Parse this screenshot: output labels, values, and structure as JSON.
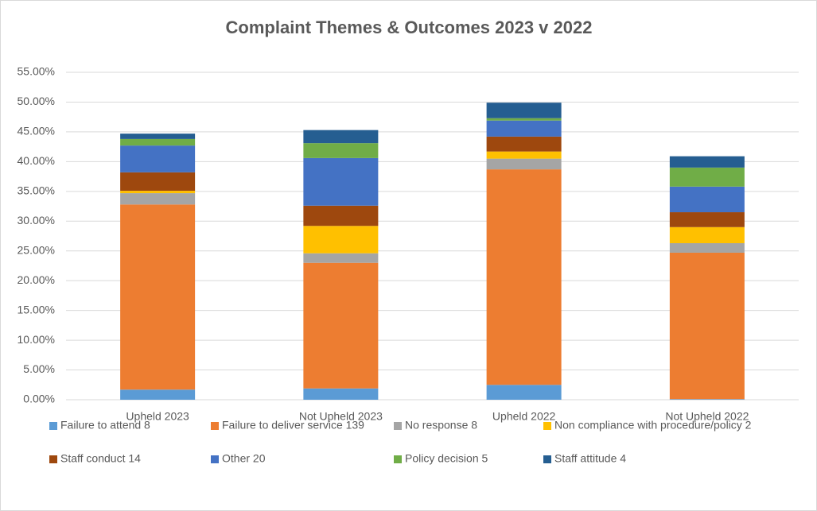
{
  "chart_data": {
    "type": "stacked_bar",
    "title": "Complaint Themes & Outcomes 2023 v 2022",
    "categories": [
      "Upheld 2023",
      "Not Upheld 2023",
      "Upheld 2022",
      "Not Upheld 2022"
    ],
    "series": [
      {
        "name": "Failure to attend 8",
        "color": "#5b9bd5",
        "values": [
          1.7,
          1.9,
          2.5,
          0.1
        ]
      },
      {
        "name": "Failure to deliver service 139",
        "color": "#ed7d31",
        "values": [
          31.1,
          21.1,
          36.2,
          24.6
        ]
      },
      {
        "name": "No response 8",
        "color": "#a5a5a5",
        "values": [
          1.9,
          1.6,
          1.8,
          1.6
        ]
      },
      {
        "name": "Non compliance with procedure/policy 2",
        "color": "#ffc000",
        "values": [
          0.4,
          4.6,
          1.2,
          2.7
        ]
      },
      {
        "name": "Staff conduct 14",
        "color": "#9e480e",
        "values": [
          3.1,
          3.4,
          2.5,
          2.5
        ]
      },
      {
        "name": "Other 20",
        "color": "#4472c4",
        "values": [
          4.5,
          8.0,
          2.7,
          4.3
        ]
      },
      {
        "name": "Policy decision 5",
        "color": "#70ad47",
        "values": [
          1.1,
          2.5,
          0.4,
          3.2
        ]
      },
      {
        "name": "Staff attitude 4",
        "color": "#255e91",
        "values": [
          0.9,
          2.2,
          2.6,
          1.9
        ]
      }
    ],
    "ylim": [
      0,
      55
    ],
    "yticks": [
      {
        "value": 0,
        "label": "0.00%"
      },
      {
        "value": 5,
        "label": "5.00%"
      },
      {
        "value": 10,
        "label": "10.00%"
      },
      {
        "value": 15,
        "label": "15.00%"
      },
      {
        "value": 20,
        "label": "20.00%"
      },
      {
        "value": 25,
        "label": "25.00%"
      },
      {
        "value": 30,
        "label": "30.00%"
      },
      {
        "value": 35,
        "label": "35.00%"
      },
      {
        "value": 40,
        "label": "40.00%"
      },
      {
        "value": 45,
        "label": "45.00%"
      },
      {
        "value": 50,
        "label": "50.00%"
      },
      {
        "value": 55,
        "label": "55.00%"
      }
    ],
    "grid": true,
    "legend": "bottom"
  }
}
